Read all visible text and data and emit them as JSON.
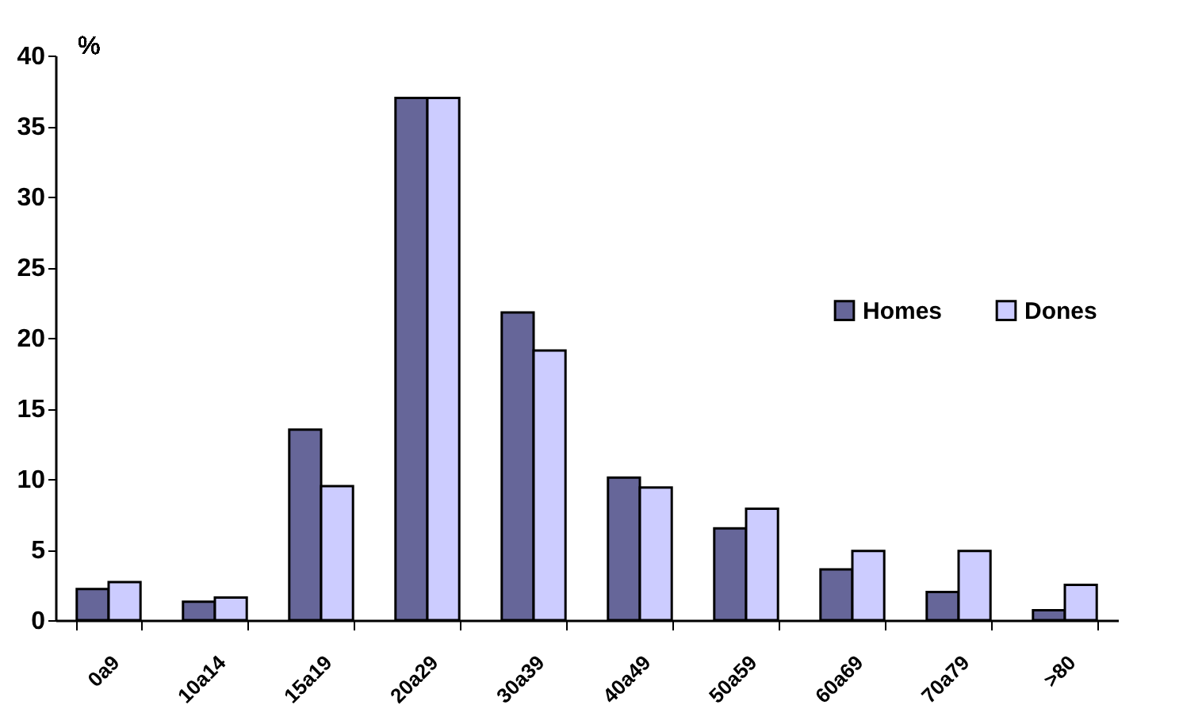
{
  "chart_data": {
    "type": "bar",
    "ylabel": "%",
    "categories": [
      "0a9",
      "10a14",
      "15a19",
      "20a29",
      "30a39",
      "40a49",
      "50a59",
      "60a69",
      "70a79",
      ">80"
    ],
    "series": [
      {
        "name": "Homes",
        "color": "#666699",
        "values": [
          2.2,
          1.3,
          13.5,
          37,
          21.8,
          10.1,
          6.5,
          3.6,
          2.0,
          0.7
        ]
      },
      {
        "name": "Dones",
        "color": "#ccccff",
        "values": [
          2.7,
          1.6,
          9.5,
          37,
          19.1,
          9.4,
          7.9,
          4.9,
          4.9,
          2.5
        ]
      }
    ],
    "ylim": [
      0,
      40
    ],
    "yticks": [
      0,
      5,
      10,
      15,
      20,
      25,
      30,
      35,
      40
    ],
    "grid": false,
    "legend": "right"
  }
}
